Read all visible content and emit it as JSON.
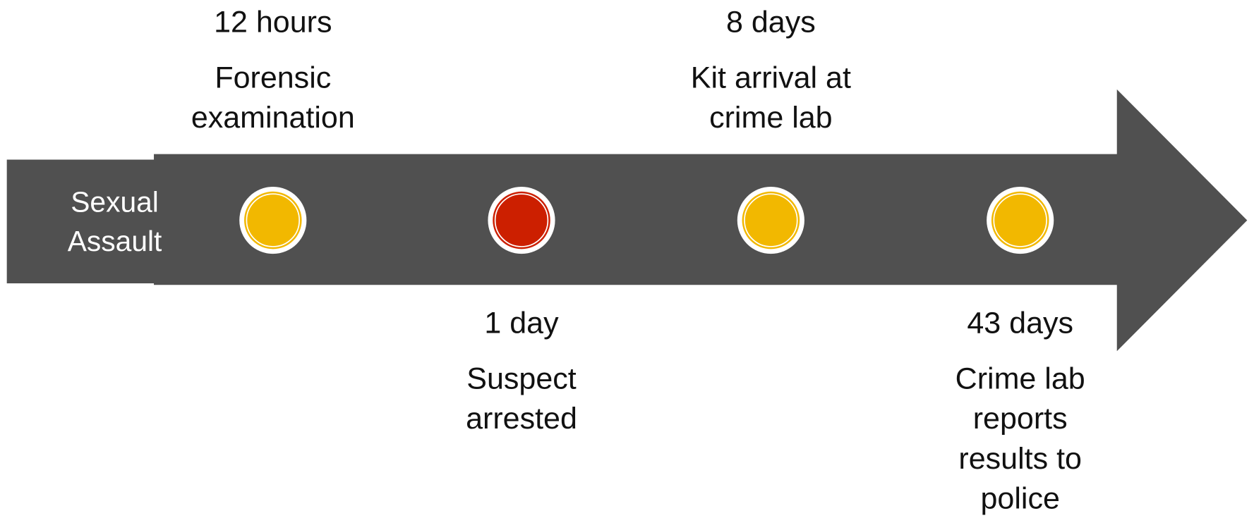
{
  "start": {
    "lines": [
      "Sexual",
      "Assault"
    ]
  },
  "events": [
    {
      "time": "12 hours",
      "lines": [
        "Forensic",
        "examination"
      ],
      "color": "#f2b800"
    },
    {
      "time": "1 day",
      "lines": [
        "Suspect",
        "arrested"
      ],
      "color": "#cc1f00"
    },
    {
      "time": "8 days",
      "lines": [
        "Kit arrival at",
        "crime lab"
      ],
      "color": "#f2b800"
    },
    {
      "time": "43 days",
      "lines": [
        "Crime lab",
        "reports",
        "results to",
        "police"
      ],
      "color": "#f2b800"
    }
  ]
}
